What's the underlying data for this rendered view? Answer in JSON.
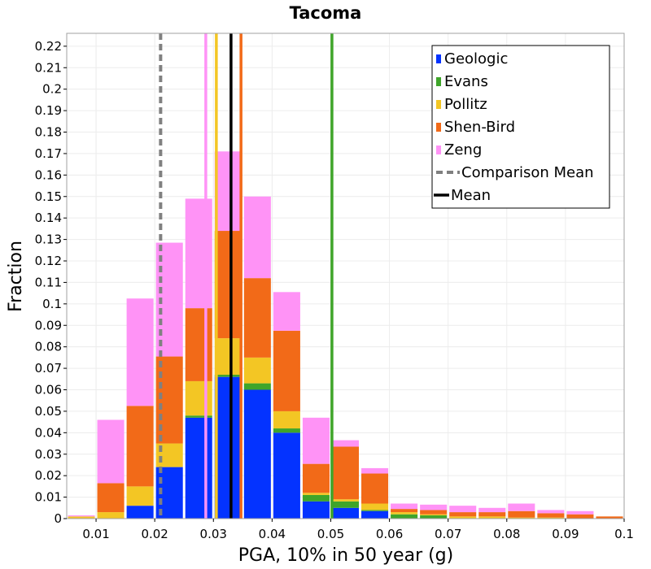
{
  "chart_data": {
    "type": "bar",
    "stacked": true,
    "title": "Tacoma",
    "xlabel": "PGA, 10% in 50 year (g)",
    "ylabel": "Fraction",
    "xlim": [
      0.005,
      0.1
    ],
    "ylim": [
      0,
      0.226
    ],
    "bin_width": 0.005,
    "x_tick_labels": [
      "0.01",
      "0.02",
      "0.03",
      "0.04",
      "0.05",
      "0.06",
      "0.07",
      "0.08",
      "0.09",
      "0.1"
    ],
    "y_tick_labels": [
      "0",
      "0.01",
      "0.02",
      "0.03",
      "0.04",
      "0.05",
      "0.06",
      "0.07",
      "0.08",
      "0.09",
      "0.1",
      "0.11",
      "0.12",
      "0.13",
      "0.14",
      "0.15",
      "0.16",
      "0.17",
      "0.18",
      "0.19",
      "0.2",
      "0.21",
      "0.22"
    ],
    "grid": true,
    "legend_position": "top-right",
    "bin_centers": [
      0.0075,
      0.0125,
      0.0175,
      0.0225,
      0.0275,
      0.0325,
      0.0375,
      0.0425,
      0.0475,
      0.0525,
      0.0575,
      0.0625,
      0.0675,
      0.0725,
      0.0775,
      0.0825,
      0.0875,
      0.0925,
      0.0975
    ],
    "series": [
      {
        "name": "Geologic",
        "color": "#0433ff",
        "values": [
          0,
          0,
          0.006,
          0.024,
          0.047,
          0.066,
          0.06,
          0.04,
          0.008,
          0.005,
          0.0035,
          0,
          0,
          0,
          0,
          0,
          0,
          0,
          0
        ]
      },
      {
        "name": "Evans",
        "color": "#3fa52a",
        "values": [
          0,
          0,
          0,
          0,
          0.001,
          0.001,
          0.003,
          0.002,
          0.003,
          0.003,
          0.0005,
          0.002,
          0.0015,
          0,
          0,
          0,
          0,
          0,
          0
        ]
      },
      {
        "name": "Pollitz",
        "color": "#f3c624",
        "values": [
          0.001,
          0.003,
          0.009,
          0.011,
          0.016,
          0.017,
          0.012,
          0.008,
          0.001,
          0.001,
          0.003,
          0.001,
          0.0005,
          0.001,
          0.001,
          0.0005,
          0.0005,
          0,
          0
        ]
      },
      {
        "name": "Shen-Bird",
        "color": "#f26a18",
        "values": [
          0,
          0.0135,
          0.0375,
          0.0405,
          0.034,
          0.05,
          0.037,
          0.0375,
          0.0135,
          0.0245,
          0.014,
          0.0015,
          0.002,
          0.002,
          0.002,
          0.003,
          0.002,
          0.002,
          0.001
        ]
      },
      {
        "name": "Zeng",
        "color": "#ff93f6",
        "values": [
          0.0005,
          0.0295,
          0.05,
          0.053,
          0.051,
          0.037,
          0.038,
          0.018,
          0.0215,
          0.003,
          0.0025,
          0.0025,
          0.0025,
          0.003,
          0.002,
          0.0035,
          0.0015,
          0.0015,
          0
        ]
      }
    ],
    "vertical_lines": [
      {
        "name": "Evans",
        "x": 0.0502,
        "color": "#3fa52a"
      },
      {
        "name": "Pollitz",
        "x": 0.0305,
        "color": "#f3c624"
      },
      {
        "name": "Shen-Bird",
        "x": 0.0347,
        "color": "#f26a18"
      },
      {
        "name": "Zeng",
        "x": 0.0287,
        "color": "#ff93f6"
      },
      {
        "name": "Comparison Mean",
        "x": 0.021,
        "color": "#808080",
        "dashed": true
      },
      {
        "name": "Mean",
        "x": 0.033,
        "color": "#000000"
      }
    ],
    "legend": [
      {
        "label": "Geologic",
        "color": "#0433ff",
        "kind": "box"
      },
      {
        "label": "Evans",
        "color": "#3fa52a",
        "kind": "box"
      },
      {
        "label": "Pollitz",
        "color": "#f3c624",
        "kind": "box"
      },
      {
        "label": "Shen-Bird",
        "color": "#f26a18",
        "kind": "box"
      },
      {
        "label": "Zeng",
        "color": "#ff93f6",
        "kind": "box"
      },
      {
        "label": "Comparison Mean",
        "color": "#808080",
        "kind": "dash"
      },
      {
        "label": "Mean",
        "color": "#000000",
        "kind": "line"
      }
    ]
  }
}
